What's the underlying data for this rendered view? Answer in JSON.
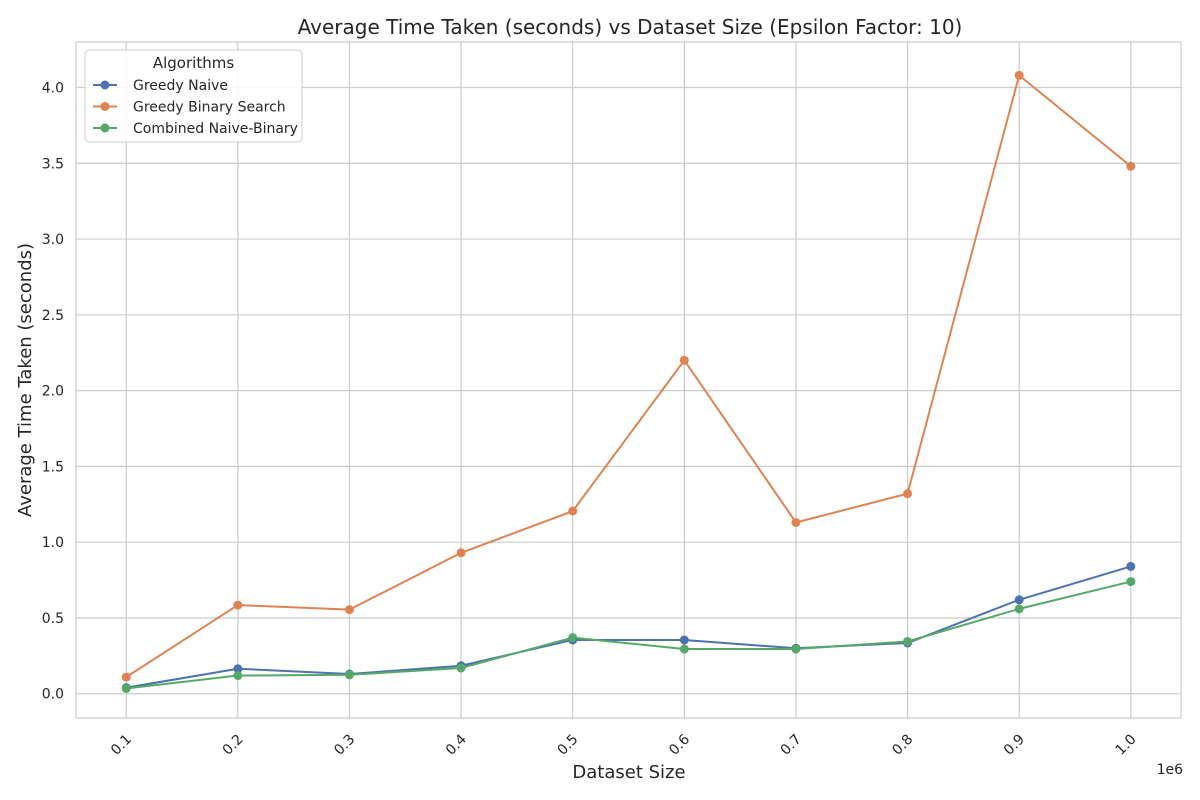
{
  "chart_data": {
    "type": "line",
    "title": "Average Time Taken (seconds) vs Dataset Size (Epsilon Factor: 10)",
    "xlabel": "Dataset Size",
    "ylabel": "Average Time Taken (seconds)",
    "x_offset_label": "1e6",
    "x": [
      0.1,
      0.2,
      0.3,
      0.4,
      0.5,
      0.6,
      0.7,
      0.8,
      0.9,
      1.0
    ],
    "x_tick_labels": [
      "0.1",
      "0.2",
      "0.3",
      "0.4",
      "0.5",
      "0.6",
      "0.7",
      "0.8",
      "0.9",
      "1.0"
    ],
    "y_ticks": [
      0.0,
      0.5,
      1.0,
      1.5,
      2.0,
      2.5,
      3.0,
      3.5,
      4.0
    ],
    "y_tick_labels": [
      "0.0",
      "0.5",
      "1.0",
      "1.5",
      "2.0",
      "2.5",
      "3.0",
      "3.5",
      "4.0"
    ],
    "xlim": [
      0.055,
      1.045
    ],
    "ylim": [
      -0.16,
      4.3
    ],
    "grid": true,
    "legend": {
      "title": "Algorithms",
      "placement": "top-left"
    },
    "series": [
      {
        "name": "Greedy Naive",
        "color": "#4c72b0",
        "values": [
          0.04,
          0.165,
          0.13,
          0.185,
          0.355,
          0.355,
          0.3,
          0.335,
          0.62,
          0.84
        ]
      },
      {
        "name": "Greedy Binary Search",
        "color": "#dd8452",
        "values": [
          0.11,
          0.585,
          0.555,
          0.93,
          1.205,
          2.2,
          1.13,
          1.32,
          4.08,
          3.48
        ]
      },
      {
        "name": "Combined Naive-Binary",
        "color": "#55a868",
        "values": [
          0.035,
          0.12,
          0.125,
          0.17,
          0.37,
          0.295,
          0.295,
          0.345,
          0.56,
          0.74
        ]
      }
    ]
  }
}
